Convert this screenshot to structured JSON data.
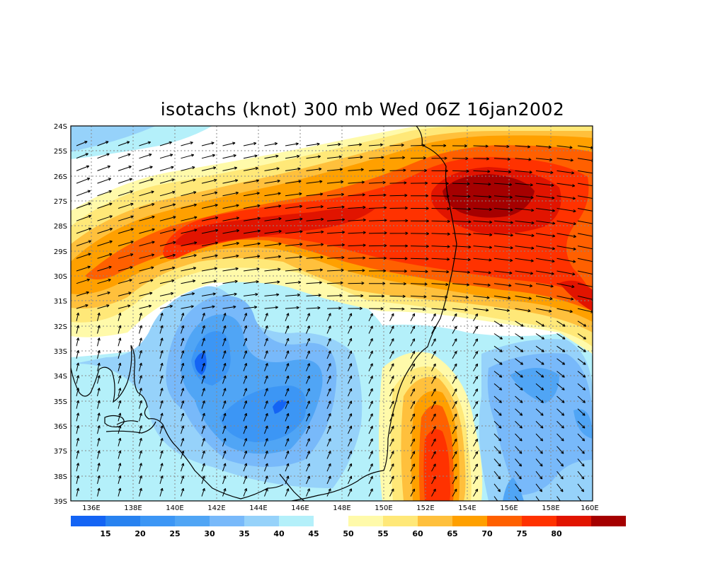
{
  "title": "isotachs (knot) 300 mb Wed 06Z 16jan2002",
  "map": {
    "lat_labels": [
      "24S",
      "25S",
      "26S",
      "27S",
      "28S",
      "29S",
      "30S",
      "31S",
      "32S",
      "33S",
      "34S",
      "35S",
      "36S",
      "37S",
      "38S",
      "39S"
    ],
    "lon_labels": [
      "136E",
      "138E",
      "140E",
      "142E",
      "144E",
      "146E",
      "148E",
      "150E",
      "152E",
      "154E",
      "156E",
      "158E",
      "160E"
    ],
    "grid": true,
    "variable": "wind speed isotachs",
    "units": "knot",
    "level": "300 mb",
    "overlay": "wind vectors",
    "coastline": true
  },
  "colorbar": {
    "labels": [
      "15",
      "20",
      "25",
      "30",
      "35",
      "40",
      "45",
      "50",
      "55",
      "60",
      "65",
      "70",
      "75",
      "80"
    ],
    "colors": [
      "#1464f4",
      "#2882f0",
      "#3c96f5",
      "#50a5f5",
      "#78b9fa",
      "#96d2fa",
      "#b4f0fa",
      "#ffffff",
      "#fffaaa",
      "#ffe878",
      "#ffc03c",
      "#ffa000",
      "#ff6000",
      "#ff3200",
      "#e11400",
      "#a50000"
    ]
  },
  "colors": {
    "land_border": "#000000",
    "grid": "#888888",
    "vector": "#000000"
  }
}
